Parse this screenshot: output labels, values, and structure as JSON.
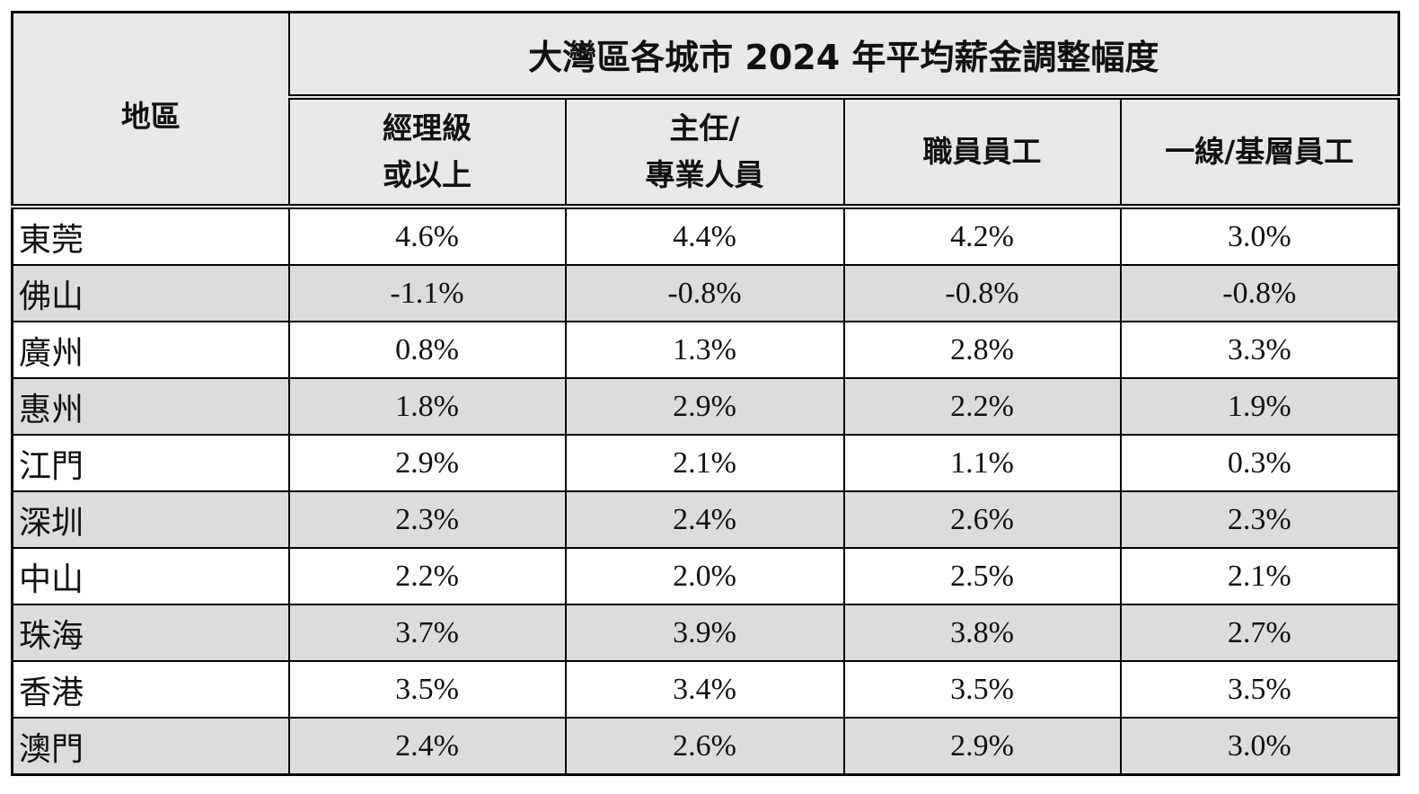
{
  "header": {
    "title": "大灣區各城市 2024 年平均薪金調整幅度",
    "region_label": "地區",
    "columns": [
      [
        "經理級",
        "或以上"
      ],
      [
        "主任/",
        "專業人員"
      ],
      [
        "職員員工"
      ],
      [
        "一線/基層員工"
      ]
    ]
  },
  "table": {
    "rows": [
      [
        "東莞",
        "4.6%",
        "4.4%",
        "4.2%",
        "3.0%"
      ],
      [
        "佛山",
        "-1.1%",
        "-0.8%",
        "-0.8%",
        "-0.8%"
      ],
      [
        "廣州",
        "0.8%",
        "1.3%",
        "2.8%",
        "3.3%"
      ],
      [
        "惠州",
        "1.8%",
        "2.9%",
        "2.2%",
        "1.9%"
      ],
      [
        "江門",
        "2.9%",
        "2.1%",
        "1.1%",
        "0.3%"
      ],
      [
        "深圳",
        "2.3%",
        "2.4%",
        "2.6%",
        "2.3%"
      ],
      [
        "中山",
        "2.2%",
        "2.0%",
        "2.5%",
        "2.1%"
      ],
      [
        "珠海",
        "3.7%",
        "3.9%",
        "3.8%",
        "2.7%"
      ],
      [
        "香港",
        "3.5%",
        "3.4%",
        "3.5%",
        "3.5%"
      ],
      [
        "澳門",
        "2.4%",
        "2.6%",
        "2.9%",
        "3.0%"
      ]
    ]
  }
}
